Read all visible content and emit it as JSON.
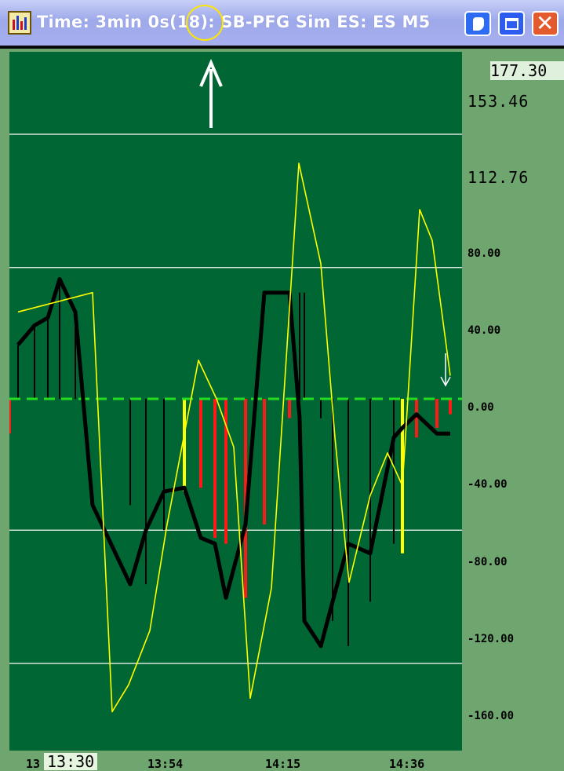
{
  "window": {
    "title": "Time: 3min 0s(18): SB-PFG Sim ES: ES M5",
    "app_icon": "chart-app-icon",
    "buttons": [
      "swap-window-icon",
      "maximize-icon",
      "close-icon"
    ],
    "title_color": "#ffffff",
    "titlebar_color": "#a7b0ef"
  },
  "annotations": {
    "circle_color": "#ffe600",
    "arrow_up_color": "#ffffff",
    "arrow_down_color": "#ffffff"
  },
  "price_axis": {
    "current_value": "177.30",
    "labels_large": [
      "153.46",
      "112.76"
    ],
    "labels_small": [
      "80.00",
      "40.00",
      "0.00",
      "-40.00",
      "-80.00",
      "-120.00",
      "-160.00"
    ]
  },
  "time_axis": {
    "cursor_label": "13:30",
    "clipped_label": "13",
    "labels": [
      "13:54",
      "14:15",
      "14:36"
    ]
  },
  "chart_data": {
    "type": "line",
    "ylim": [
      -180,
      200
    ],
    "reference_lines": [
      137,
      68,
      0,
      -68,
      -137
    ],
    "histogram": [
      {
        "v": 28,
        "c": "black"
      },
      {
        "v": 38,
        "c": "black"
      },
      {
        "v": 42,
        "c": "black"
      },
      {
        "v": 62,
        "c": "black"
      },
      {
        "v": 45,
        "c": "black"
      },
      {
        "v": 0,
        "c": "black"
      },
      {
        "v": -55,
        "c": "black"
      },
      {
        "v": -96,
        "c": "black"
      },
      {
        "v": -68,
        "c": "black"
      },
      {
        "v": -48,
        "c": "yellow"
      },
      {
        "v": -46,
        "c": "red"
      },
      {
        "v": -72,
        "c": "red"
      },
      {
        "v": -75,
        "c": "red"
      },
      {
        "v": -103,
        "c": "red"
      },
      {
        "v": -65,
        "c": "red"
      },
      {
        "v": -10,
        "c": "red"
      },
      {
        "v": 55,
        "c": "black"
      },
      {
        "v": 55,
        "c": "black"
      },
      {
        "v": -10,
        "c": "black"
      },
      {
        "v": -115,
        "c": "black"
      },
      {
        "v": -128,
        "c": "black"
      },
      {
        "v": -105,
        "c": "black"
      },
      {
        "v": -75,
        "c": "black"
      },
      {
        "v": -80,
        "c": "yellow"
      },
      {
        "v": -20,
        "c": "red"
      },
      {
        "v": -15,
        "c": "red"
      },
      {
        "v": -8,
        "c": "red"
      },
      {
        "v": -18,
        "c": "red"
      }
    ],
    "series": [
      {
        "name": "",
        "color": "#000000",
        "x": [
          0,
          21,
          38,
          53,
          73,
          95,
          143,
          163,
          186,
          212,
          233,
          251,
          265,
          290,
          314,
          346,
          359,
          365,
          386,
          401,
          421,
          449,
          479,
          490,
          508,
          534,
          551
        ],
        "y": [
          28,
          38,
          42,
          62,
          45,
          -55,
          -96,
          -68,
          -48,
          -46,
          -72,
          -75,
          -103,
          -65,
          55,
          55,
          -10,
          -115,
          -128,
          -105,
          -75,
          -80,
          -20,
          -15,
          -8,
          -18,
          -18
        ]
      },
      {
        "name": "",
        "color": "#ffff00",
        "x": [
          0,
          95,
          120,
          141,
          168,
          190,
          230,
          253,
          275,
          296,
          323,
          358,
          386,
          404,
          422,
          449,
          471,
          490,
          512,
          528,
          551
        ],
        "y": [
          45,
          55,
          -162,
          -148,
          -120,
          -65,
          20,
          0,
          -25,
          -155,
          -98,
          122,
          70,
          -20,
          -95,
          -50,
          -28,
          -45,
          98,
          82,
          12
        ]
      }
    ]
  }
}
